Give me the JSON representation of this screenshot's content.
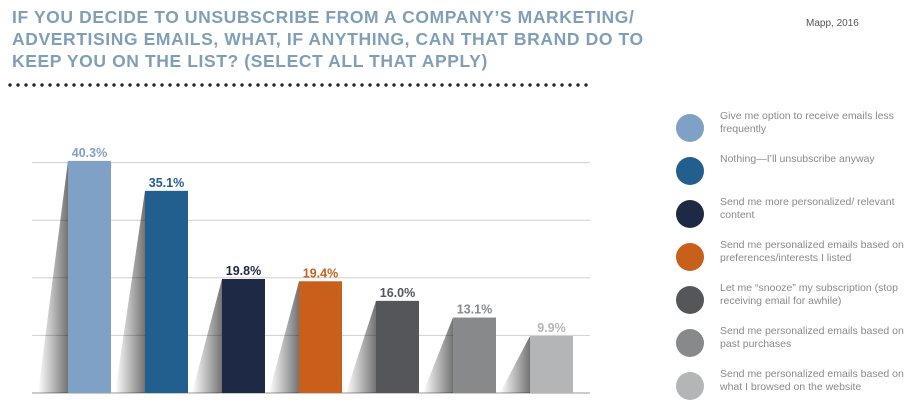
{
  "header": {
    "title": "IF YOU DECIDE TO UNSUBSCRIBE FROM A COMPANY’S MARKETING/ ADVERTISING EMAILS, WHAT, IF ANYTHING, CAN THAT BRAND DO TO KEEP YOU ON THE LIST? (SELECT ALL THAT APPLY)",
    "source": "Mapp, 2016"
  },
  "chart_data": {
    "type": "bar",
    "title": "IF YOU DECIDE TO UNSUBSCRIBE FROM A COMPANY’S MARKETING/ ADVERTISING EMAILS, WHAT, IF ANYTHING, CAN THAT BRAND DO TO KEEP YOU ON THE LIST? (SELECT ALL THAT APPLY)",
    "unit": "%",
    "ylim": [
      0,
      40
    ],
    "grid": true,
    "legend_position": "right",
    "categories": [
      "Give me option to receive emails less frequently",
      "Nothing—I’ll unsubscribe anyway",
      "Send me more personalized/ relevant content",
      "Send me personalized emails based on preferences/interests I listed",
      "Let me “snooze” my subscription (stop receiving email for awhile)",
      "Send me personalized emails based on past purchases",
      "Send me personalized emails based on what I browsed on the website"
    ],
    "values": [
      40.3,
      35.1,
      19.8,
      19.4,
      16.0,
      13.1,
      9.9
    ],
    "data_labels": [
      "40.3%",
      "35.1%",
      "19.8%",
      "19.4%",
      "16.0%",
      "13.1%",
      "9.9%"
    ],
    "colors": [
      "#7fa1c5",
      "#225f8e",
      "#1e2a45",
      "#c85f1a",
      "#545659",
      "#87898b",
      "#b4b5b6"
    ],
    "label_colors": [
      "#7fa1c5",
      "#225f8e",
      "#1e2a45",
      "#c85f1a",
      "#545659",
      "#87898b",
      "#b4b5b6"
    ]
  }
}
